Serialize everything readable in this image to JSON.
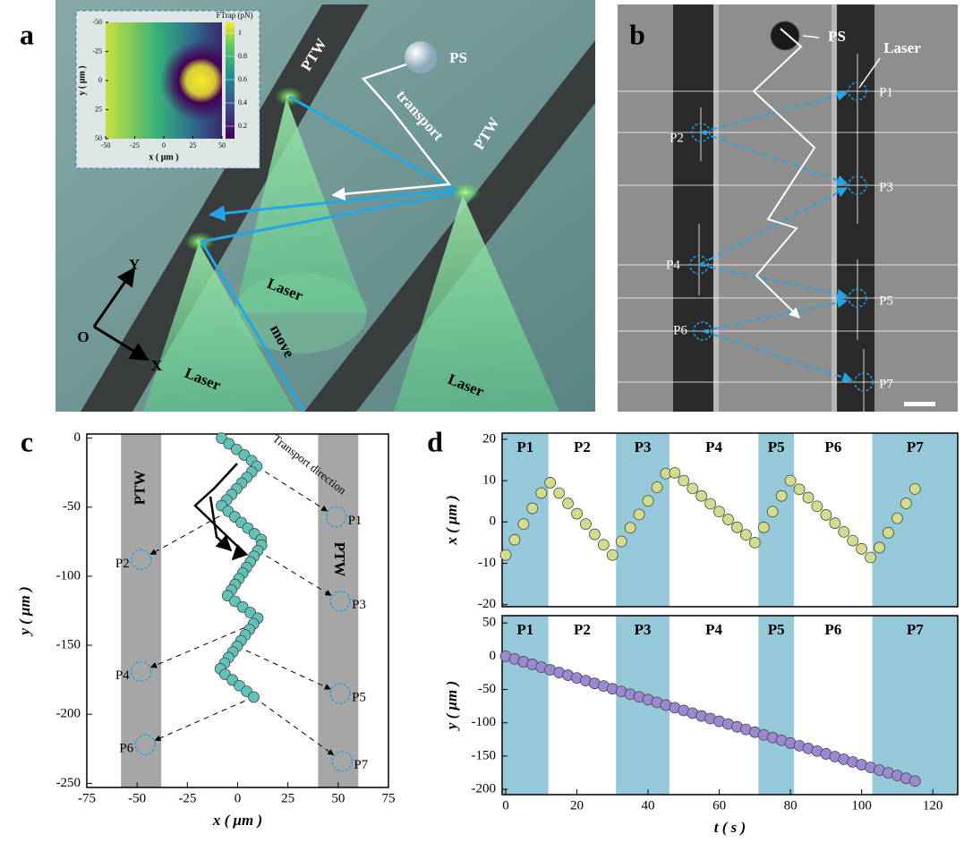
{
  "panel_labels": [
    "a",
    "b",
    "c",
    "d"
  ],
  "panel_a": {
    "labels": [
      "PTW",
      "PTW",
      "PS",
      "transport",
      "Laser",
      "Laser",
      "Laser",
      "move",
      "Y",
      "O",
      "X"
    ],
    "inset": {
      "xlabel": "x ( μm )",
      "ylabel": "y ( μm )",
      "xticks": [
        -50,
        -25,
        0,
        25,
        50
      ],
      "yticks": [
        -50,
        -25,
        0,
        25,
        50
      ],
      "colorbar_label": "FTrap (pN)",
      "colorbar_ticks": [
        1,
        0.8,
        0.6,
        0.4,
        0.2
      ]
    }
  },
  "panel_b": {
    "labels": [
      "PS",
      "Laser",
      "P1",
      "P2",
      "P3",
      "P4",
      "P5",
      "P6",
      "P7"
    ]
  },
  "chart_data": [
    {
      "type": "scatter",
      "xlabel": "x ( μm )",
      "ylabel": "y ( μm )",
      "xlim": [
        -75,
        75
      ],
      "xticks": [
        -75,
        -50,
        -25,
        0,
        25,
        50,
        75
      ],
      "ylim": [
        -253,
        3
      ],
      "yticks": [
        0,
        -50,
        -100,
        -150,
        -200,
        -250
      ],
      "color": "#62c2b8",
      "band_color": "#a6a6a6",
      "bands": [
        {
          "label": "PTW",
          "x": [
            -58,
            -38
          ]
        },
        {
          "label": "PTW",
          "x": [
            40,
            60
          ]
        }
      ],
      "annotation": "Transport direction",
      "markers": [
        {
          "label": "P1",
          "x": 49,
          "y": -57
        },
        {
          "label": "P2",
          "x": -48,
          "y": -88
        },
        {
          "label": "P3",
          "x": 51,
          "y": -118
        },
        {
          "label": "P4",
          "x": -48,
          "y": -169
        },
        {
          "label": "P5",
          "x": 51,
          "y": -185
        },
        {
          "label": "P6",
          "x": -46,
          "y": -222
        },
        {
          "label": "P7",
          "x": 52,
          "y": -234
        }
      ],
      "x": [
        -8,
        -4.3,
        -0.5,
        3.3,
        7,
        9.5,
        7,
        4.5,
        2,
        -0.5,
        -3,
        -5.5,
        -8,
        -4.7,
        -1.4,
        1.8,
        5.1,
        8.4,
        11.7,
        11.9,
        10,
        8.1,
        6.3,
        4.4,
        2.5,
        0.6,
        -1.3,
        -3.1,
        -5,
        -1.3,
        2.5,
        6.3,
        10,
        7.9,
        5.9,
        3.8,
        1.7,
        -0.3,
        -2.4,
        -4.5,
        -6.5,
        -8.6,
        -6.2,
        -2.6,
        0.9,
        4.5,
        8
      ],
      "values": [
        0,
        -4.1,
        -8.2,
        -12.2,
        -16.3,
        -20.4,
        -24.5,
        -28.5,
        -32.6,
        -36.7,
        -40.8,
        -44.8,
        -48.9,
        -53,
        -57,
        -61.1,
        -65.2,
        -69.3,
        -73.4,
        -77.4,
        -81.5,
        -85.6,
        -89.7,
        -93.7,
        -97.8,
        -101.9,
        -106,
        -110,
        -114.1,
        -118.2,
        -122.3,
        -126.3,
        -130.4,
        -134.5,
        -138.6,
        -142.6,
        -146.7,
        -150.8,
        -154.9,
        -158.9,
        -163,
        -167.1,
        -171.2,
        -175.2,
        -179.3,
        -183.4,
        -187.5
      ]
    },
    {
      "type": "scatter",
      "ylabel": "x ( μm )",
      "xlim": [
        -1,
        127
      ],
      "ylim": [
        -20.5,
        21.5
      ],
      "yticks": [
        -20,
        -10,
        0,
        10,
        20
      ],
      "color": "#d3dc8c",
      "band_color": "#95c9d9",
      "bands": [
        {
          "label": "P1",
          "x": [
            -1,
            12
          ],
          "shaded": true
        },
        {
          "label": "P2",
          "x": [
            12,
            31
          ],
          "shaded": false
        },
        {
          "label": "P3",
          "x": [
            31,
            46
          ],
          "shaded": true
        },
        {
          "label": "P4",
          "x": [
            46,
            71
          ],
          "shaded": false
        },
        {
          "label": "P5",
          "x": [
            71,
            81
          ],
          "shaded": true
        },
        {
          "label": "P6",
          "x": [
            81,
            103
          ],
          "shaded": false
        },
        {
          "label": "P7",
          "x": [
            103,
            127
          ],
          "shaded": true
        }
      ],
      "x": [
        0,
        2.5,
        5,
        7.5,
        10,
        12.5,
        15,
        17.5,
        20,
        22.5,
        25,
        27.5,
        30,
        32.5,
        35,
        37.5,
        40,
        42.5,
        45,
        47.5,
        50,
        52.5,
        55,
        57.5,
        60,
        62.5,
        65,
        67.5,
        70,
        72.5,
        75,
        77.5,
        80,
        82.5,
        85,
        87.5,
        90,
        92.5,
        95,
        97.5,
        100,
        102.5,
        105,
        107.5,
        110,
        112.5,
        115
      ],
      "values": [
        -8,
        -4.3,
        -0.5,
        3.3,
        7,
        9.5,
        7,
        4.5,
        2,
        -0.5,
        -3,
        -5.5,
        -8,
        -4.7,
        -1.4,
        1.8,
        5.1,
        8.4,
        11.7,
        11.9,
        10,
        8.1,
        6.3,
        4.4,
        2.5,
        0.6,
        -1.3,
        -3.1,
        -5,
        -1.3,
        2.5,
        6.3,
        10,
        7.9,
        5.9,
        3.8,
        1.7,
        -0.3,
        -2.4,
        -4.5,
        -6.5,
        -8.6,
        -6.2,
        -2.6,
        0.9,
        4.5,
        8
      ]
    },
    {
      "type": "scatter",
      "xlabel": "t ( s )",
      "ylabel": "y ( μm )",
      "xlim": [
        -1,
        127
      ],
      "xticks": [
        0,
        20,
        40,
        60,
        80,
        100,
        120
      ],
      "ylim": [
        -208,
        61
      ],
      "yticks": [
        50,
        0,
        -50,
        -100,
        -150,
        -200
      ],
      "color": "#9b88d2",
      "band_color": "#95c9d9",
      "bands": [
        {
          "label": "P1",
          "x": [
            -1,
            12
          ],
          "shaded": true
        },
        {
          "label": "P2",
          "x": [
            12,
            31
          ],
          "shaded": false
        },
        {
          "label": "P3",
          "x": [
            31,
            46
          ],
          "shaded": true
        },
        {
          "label": "P4",
          "x": [
            46,
            71
          ],
          "shaded": false
        },
        {
          "label": "P5",
          "x": [
            71,
            81
          ],
          "shaded": true
        },
        {
          "label": "P6",
          "x": [
            81,
            103
          ],
          "shaded": false
        },
        {
          "label": "P7",
          "x": [
            103,
            127
          ],
          "shaded": true
        }
      ],
      "x": [
        0,
        2.5,
        5,
        7.5,
        10,
        12.5,
        15,
        17.5,
        20,
        22.5,
        25,
        27.5,
        30,
        32.5,
        35,
        37.5,
        40,
        42.5,
        45,
        47.5,
        50,
        52.5,
        55,
        57.5,
        60,
        62.5,
        65,
        67.5,
        70,
        72.5,
        75,
        77.5,
        80,
        82.5,
        85,
        87.5,
        90,
        92.5,
        95,
        97.5,
        100,
        102.5,
        105,
        107.5,
        110,
        112.5,
        115
      ],
      "values": [
        0,
        -4.1,
        -8.2,
        -12.2,
        -16.3,
        -20.4,
        -24.5,
        -28.5,
        -32.6,
        -36.7,
        -40.8,
        -44.8,
        -48.9,
        -53,
        -57,
        -61.1,
        -65.2,
        -69.3,
        -73.4,
        -77.4,
        -81.5,
        -85.6,
        -89.7,
        -93.7,
        -97.8,
        -101.9,
        -106,
        -110,
        -114.1,
        -118.2,
        -122.3,
        -126.3,
        -130.4,
        -134.5,
        -138.6,
        -142.6,
        -146.7,
        -150.8,
        -154.9,
        -158.9,
        -163,
        -167.1,
        -171.2,
        -175.2,
        -179.3,
        -183.4,
        -187.5
      ]
    }
  ]
}
